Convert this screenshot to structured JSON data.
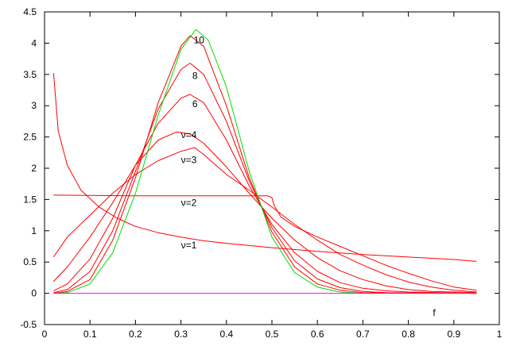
{
  "chart_data": {
    "type": "line",
    "xlabel": "f",
    "xlim": [
      0,
      1
    ],
    "ylim": [
      -0.5,
      4.5
    ],
    "x_ticks": [
      "0",
      "0.1",
      "0.2",
      "0.3",
      "0.4",
      "0.5",
      "0.6",
      "0.7",
      "0.8",
      "0.9",
      "1"
    ],
    "y_ticks": [
      "-0.5",
      "0",
      "0.5",
      "1",
      "1.5",
      "2",
      "2.5",
      "3",
      "3.5",
      "4",
      "4.5"
    ],
    "x_tick_values": [
      0,
      0.1,
      0.2,
      0.3,
      0.4,
      0.5,
      0.6,
      0.7,
      0.8,
      0.9,
      1
    ],
    "y_tick_values": [
      -0.5,
      0,
      0.5,
      1,
      1.5,
      2,
      2.5,
      3,
      3.5,
      4,
      4.5
    ],
    "grid": false,
    "colors": {
      "family": "#ff0000",
      "limit": "#00dd00",
      "baseline": "#ff00ff"
    },
    "series": [
      {
        "label": "ν=1",
        "label_at": [
          0.3,
          0.72
        ],
        "points": [
          [
            0.02,
            3.52
          ],
          [
            0.03,
            2.6
          ],
          [
            0.05,
            2.05
          ],
          [
            0.08,
            1.65
          ],
          [
            0.12,
            1.38
          ],
          [
            0.16,
            1.2
          ],
          [
            0.2,
            1.07
          ],
          [
            0.25,
            0.97
          ],
          [
            0.3,
            0.9
          ],
          [
            0.35,
            0.84
          ],
          [
            0.4,
            0.8
          ],
          [
            0.5,
            0.73
          ],
          [
            0.6,
            0.67
          ],
          [
            0.7,
            0.62
          ],
          [
            0.8,
            0.58
          ],
          [
            0.9,
            0.54
          ],
          [
            0.95,
            0.51
          ]
        ]
      },
      {
        "label": "ν=2",
        "label_at": [
          0.3,
          1.4
        ],
        "points": [
          [
            0.02,
            1.57
          ],
          [
            0.1,
            1.565
          ],
          [
            0.2,
            1.56
          ],
          [
            0.3,
            1.56
          ],
          [
            0.4,
            1.56
          ],
          [
            0.45,
            1.56
          ],
          [
            0.49,
            1.56
          ],
          [
            0.5,
            1.53
          ],
          [
            0.505,
            1.4
          ],
          [
            0.52,
            1.22
          ],
          [
            0.55,
            1.07
          ],
          [
            0.6,
            0.9
          ],
          [
            0.65,
            0.75
          ],
          [
            0.7,
            0.6
          ],
          [
            0.75,
            0.45
          ],
          [
            0.8,
            0.32
          ],
          [
            0.85,
            0.2
          ],
          [
            0.9,
            0.1
          ],
          [
            0.95,
            0.05
          ]
        ]
      },
      {
        "label": "ν=3",
        "label_at": [
          0.3,
          2.08
        ],
        "points": [
          [
            0.02,
            0.58
          ],
          [
            0.05,
            0.9
          ],
          [
            0.1,
            1.25
          ],
          [
            0.15,
            1.6
          ],
          [
            0.2,
            1.9
          ],
          [
            0.25,
            2.12
          ],
          [
            0.3,
            2.27
          ],
          [
            0.33,
            2.33
          ],
          [
            0.35,
            2.22
          ],
          [
            0.4,
            1.9
          ],
          [
            0.45,
            1.65
          ],
          [
            0.5,
            1.38
          ],
          [
            0.55,
            1.1
          ],
          [
            0.6,
            0.85
          ],
          [
            0.65,
            0.62
          ],
          [
            0.7,
            0.45
          ],
          [
            0.75,
            0.3
          ],
          [
            0.8,
            0.18
          ],
          [
            0.85,
            0.1
          ],
          [
            0.9,
            0.05
          ],
          [
            0.95,
            0.02
          ]
        ]
      },
      {
        "label": "ν=4",
        "label_at": [
          0.3,
          2.48
        ],
        "points": [
          [
            0.02,
            0.19
          ],
          [
            0.05,
            0.42
          ],
          [
            0.1,
            0.9
          ],
          [
            0.15,
            1.45
          ],
          [
            0.2,
            2.05
          ],
          [
            0.25,
            2.45
          ],
          [
            0.29,
            2.58
          ],
          [
            0.32,
            2.55
          ],
          [
            0.35,
            2.4
          ],
          [
            0.4,
            2.02
          ],
          [
            0.45,
            1.6
          ],
          [
            0.5,
            1.2
          ],
          [
            0.55,
            0.85
          ],
          [
            0.6,
            0.57
          ],
          [
            0.65,
            0.36
          ],
          [
            0.7,
            0.22
          ],
          [
            0.75,
            0.12
          ],
          [
            0.8,
            0.06
          ],
          [
            0.85,
            0.03
          ],
          [
            0.95,
            0.01
          ]
        ]
      },
      {
        "label": "6",
        "label_at": [
          0.325,
          2.98
        ],
        "points": [
          [
            0.02,
            0.04
          ],
          [
            0.05,
            0.15
          ],
          [
            0.1,
            0.55
          ],
          [
            0.15,
            1.2
          ],
          [
            0.2,
            2.05
          ],
          [
            0.25,
            2.72
          ],
          [
            0.3,
            3.12
          ],
          [
            0.32,
            3.18
          ],
          [
            0.35,
            3.05
          ],
          [
            0.4,
            2.45
          ],
          [
            0.45,
            1.72
          ],
          [
            0.5,
            1.1
          ],
          [
            0.55,
            0.65
          ],
          [
            0.6,
            0.35
          ],
          [
            0.65,
            0.17
          ],
          [
            0.7,
            0.08
          ],
          [
            0.75,
            0.04
          ],
          [
            0.8,
            0.02
          ],
          [
            0.95,
            0
          ]
        ]
      },
      {
        "label": "8",
        "label_at": [
          0.325,
          3.43
        ],
        "points": [
          [
            0.02,
            0.01
          ],
          [
            0.05,
            0.06
          ],
          [
            0.1,
            0.35
          ],
          [
            0.15,
            1.0
          ],
          [
            0.2,
            1.95
          ],
          [
            0.25,
            2.95
          ],
          [
            0.3,
            3.58
          ],
          [
            0.32,
            3.68
          ],
          [
            0.35,
            3.5
          ],
          [
            0.4,
            2.75
          ],
          [
            0.45,
            1.8
          ],
          [
            0.5,
            1.05
          ],
          [
            0.55,
            0.52
          ],
          [
            0.6,
            0.23
          ],
          [
            0.65,
            0.09
          ],
          [
            0.7,
            0.03
          ],
          [
            0.75,
            0.01
          ],
          [
            0.95,
            0
          ]
        ]
      },
      {
        "label": "10",
        "label_at": [
          0.328,
          4.0
        ],
        "points": [
          [
            0.02,
            0.0
          ],
          [
            0.05,
            0.03
          ],
          [
            0.1,
            0.22
          ],
          [
            0.15,
            0.85
          ],
          [
            0.2,
            1.85
          ],
          [
            0.25,
            3.05
          ],
          [
            0.3,
            3.95
          ],
          [
            0.32,
            4.12
          ],
          [
            0.35,
            3.95
          ],
          [
            0.4,
            3.0
          ],
          [
            0.45,
            1.85
          ],
          [
            0.5,
            0.98
          ],
          [
            0.55,
            0.42
          ],
          [
            0.6,
            0.15
          ],
          [
            0.65,
            0.05
          ],
          [
            0.7,
            0.01
          ],
          [
            0.95,
            0
          ]
        ]
      },
      {
        "label": "",
        "color_key": "limit",
        "points": [
          [
            0.02,
            0.0
          ],
          [
            0.05,
            0.01
          ],
          [
            0.1,
            0.15
          ],
          [
            0.15,
            0.65
          ],
          [
            0.2,
            1.6
          ],
          [
            0.25,
            2.85
          ],
          [
            0.3,
            3.9
          ],
          [
            0.333,
            4.22
          ],
          [
            0.36,
            4.05
          ],
          [
            0.4,
            3.3
          ],
          [
            0.45,
            1.95
          ],
          [
            0.5,
            0.9
          ],
          [
            0.55,
            0.33
          ],
          [
            0.6,
            0.1
          ],
          [
            0.65,
            0.02
          ],
          [
            0.7,
            0.0
          ],
          [
            0.95,
            0
          ]
        ]
      },
      {
        "label": "",
        "color_key": "baseline",
        "points": [
          [
            0.02,
            0.0
          ],
          [
            0.95,
            0.0
          ]
        ]
      }
    ]
  }
}
